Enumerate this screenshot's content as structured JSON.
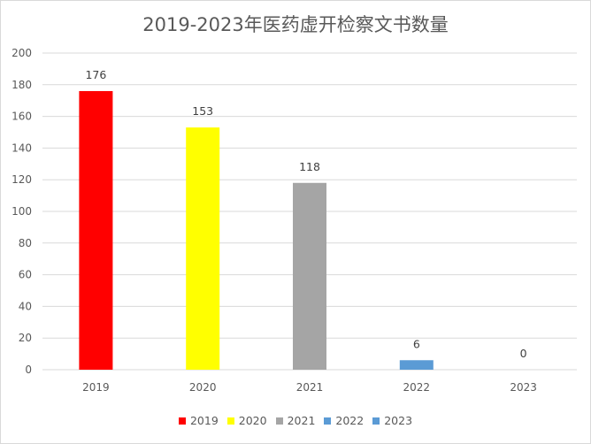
{
  "chart_data": {
    "type": "bar",
    "title": "2019-2023年医药虚开检察文书数量",
    "categories": [
      "2019",
      "2020",
      "2021",
      "2022",
      "2023"
    ],
    "values": [
      176,
      153,
      118,
      6,
      0
    ],
    "colors": [
      "#ff0000",
      "#ffff00",
      "#a5a5a5",
      "#5b9bd5",
      "#5b9bd5"
    ],
    "ylim": [
      0,
      200
    ],
    "yticks": [
      "0",
      "20",
      "40",
      "60",
      "80",
      "100",
      "120",
      "140",
      "160",
      "180",
      "200"
    ],
    "grid": true,
    "legend_position": "bottom",
    "legend": [
      "2019",
      "2020",
      "2021",
      "2022",
      "2023"
    ]
  }
}
